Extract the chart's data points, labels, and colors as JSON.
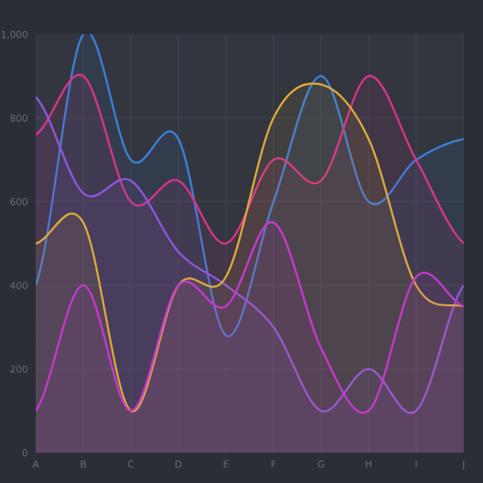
{
  "chart_data": {
    "type": "area",
    "categories": [
      "A",
      "B",
      "C",
      "D",
      "E",
      "F",
      "G",
      "H",
      "I",
      "J"
    ],
    "series": [
      {
        "color": "#3a7fd5",
        "values": [
          400,
          1000,
          700,
          750,
          280,
          600,
          900,
          600,
          700,
          750
        ]
      },
      {
        "color": "#d6338a",
        "values": [
          760,
          900,
          600,
          650,
          500,
          700,
          650,
          900,
          700,
          500
        ]
      },
      {
        "color": "#8f55d8",
        "values": [
          850,
          620,
          650,
          480,
          400,
          300,
          100,
          200,
          100,
          400
        ]
      },
      {
        "color": "#d8a73b",
        "values": [
          500,
          550,
          100,
          400,
          420,
          800,
          880,
          750,
          400,
          350
        ]
      },
      {
        "color": "#c23ac9",
        "values": [
          100,
          400,
          100,
          400,
          350,
          550,
          250,
          100,
          420,
          350
        ]
      }
    ],
    "ylim": [
      0,
      1000
    ],
    "yticks": [
      0,
      200,
      400,
      600,
      800,
      {
        "value": 1000,
        "label": "1,000"
      }
    ],
    "grid": true,
    "legend": false
  }
}
